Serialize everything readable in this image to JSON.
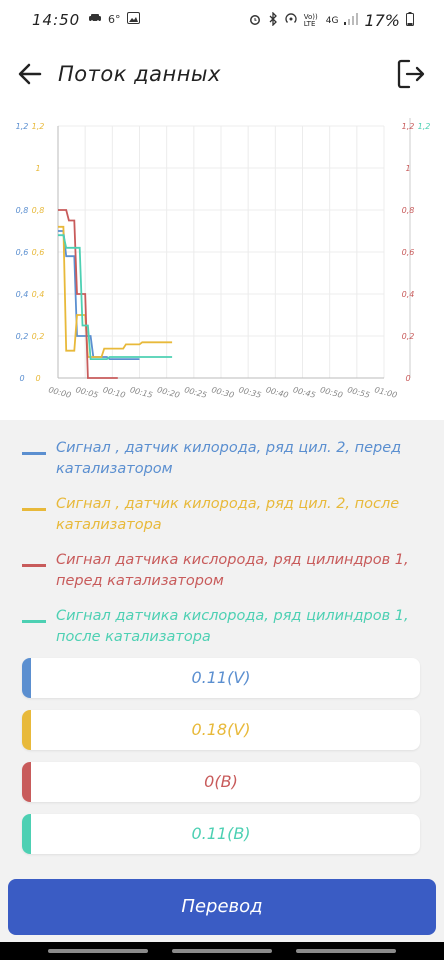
{
  "status": {
    "time": "14:50",
    "temp": "6°",
    "battery": "17%",
    "network": "4G",
    "volte": "Vo)) LTE"
  },
  "header": {
    "title": "Поток данных"
  },
  "colors": {
    "blue": "#5b8fd0",
    "yellow": "#e8b93a",
    "red": "#c85b5b",
    "teal": "#4dd0b3",
    "button": "#3a5cc4"
  },
  "chart_data": {
    "type": "line",
    "x_ticks": [
      "00:00",
      "00:05",
      "00:10",
      "00:15",
      "00:20",
      "00:25",
      "00:30",
      "00:35",
      "00:40",
      "00:45",
      "00:50",
      "00:55",
      "01:00"
    ],
    "y_ticks": [
      "0",
      "0,2",
      "0,4",
      "0,6",
      "0,8",
      "1",
      "1,2"
    ],
    "left_axis_blue_ticks": [
      "0",
      "0,2",
      "0,4",
      "0,6",
      "0,8",
      "",
      "1,2"
    ],
    "left_axis_yellow_ticks": [
      "0",
      "0,2",
      "0,4",
      "0,6",
      "0,8",
      "1",
      "1,2"
    ],
    "right_axis_red_ticks": [
      "0",
      "0,2",
      "0,4",
      "0,6",
      "0,8",
      "1",
      "1,2"
    ],
    "right_axis_teal_ticks": [
      "",
      "",
      "",
      "",
      "",
      "",
      "1,2"
    ],
    "xlim": [
      0,
      60
    ],
    "ylim": [
      0,
      1.2
    ],
    "grid": true,
    "series": [
      {
        "name": "Сигнал , датчик килорода, ряд цил. 2, перед катализатором",
        "color": "#5b8fd0",
        "points": [
          [
            0,
            0.7
          ],
          [
            1,
            0.7
          ],
          [
            1.5,
            0.58
          ],
          [
            3,
            0.58
          ],
          [
            3.5,
            0.2
          ],
          [
            6,
            0.2
          ],
          [
            6.5,
            0.1
          ],
          [
            9,
            0.1
          ],
          [
            9.5,
            0.09
          ],
          [
            12,
            0.09
          ],
          [
            12.5,
            0.09
          ],
          [
            15,
            0.09
          ]
        ]
      },
      {
        "name": "Сигнал , датчик килорода, ряд цил. 2, после катализатора",
        "color": "#e8b93a",
        "points": [
          [
            0,
            0.72
          ],
          [
            1,
            0.72
          ],
          [
            1.5,
            0.13
          ],
          [
            3,
            0.13
          ],
          [
            3.5,
            0.3
          ],
          [
            5,
            0.3
          ],
          [
            5.5,
            0.1
          ],
          [
            8,
            0.1
          ],
          [
            8.5,
            0.14
          ],
          [
            12,
            0.14
          ],
          [
            12.5,
            0.16
          ],
          [
            15,
            0.16
          ],
          [
            15.5,
            0.17
          ],
          [
            21,
            0.17
          ]
        ]
      },
      {
        "name": "Сигнал датчика кислорода, ряд цилиндров 1, перед катализатором",
        "color": "#c85b5b",
        "points": [
          [
            0,
            0.8
          ],
          [
            1.5,
            0.8
          ],
          [
            2,
            0.75
          ],
          [
            3,
            0.75
          ],
          [
            3.5,
            0.4
          ],
          [
            5,
            0.4
          ],
          [
            5.5,
            0.0
          ],
          [
            9,
            0.0
          ],
          [
            9.5,
            0.0
          ],
          [
            11,
            0.0
          ]
        ]
      },
      {
        "name": "Сигнал датчика кислорода, ряд цилиндров 1, после катализатора",
        "color": "#4dd0b3",
        "points": [
          [
            0,
            0.68
          ],
          [
            1,
            0.68
          ],
          [
            1.5,
            0.62
          ],
          [
            4,
            0.62
          ],
          [
            4.5,
            0.25
          ],
          [
            5.5,
            0.25
          ],
          [
            6,
            0.09
          ],
          [
            9,
            0.09
          ],
          [
            9.5,
            0.1
          ],
          [
            21,
            0.1
          ]
        ]
      }
    ]
  },
  "legend": [
    {
      "label": "Сигнал , датчик килорода, ряд цил. 2, перед катализатором",
      "color": "#5b8fd0"
    },
    {
      "label": "Сигнал , датчик килорода, ряд цил. 2, после катализатора",
      "color": "#e8b93a"
    },
    {
      "label": "Сигнал датчика кислорода, ряд цилиндров 1, перед катализатором",
      "color": "#c85b5b"
    },
    {
      "label": "Сигнал датчика кислорода, ряд цилиндров 1, после катализатора",
      "color": "#4dd0b3"
    }
  ],
  "values": [
    {
      "text": "0.11(V)",
      "color": "#5b8fd0"
    },
    {
      "text": "0.18(V)",
      "color": "#e8b93a"
    },
    {
      "text": "0(B)",
      "color": "#c85b5b"
    },
    {
      "text": "0.11(B)",
      "color": "#4dd0b3"
    }
  ],
  "button": {
    "label": "Перевод"
  }
}
